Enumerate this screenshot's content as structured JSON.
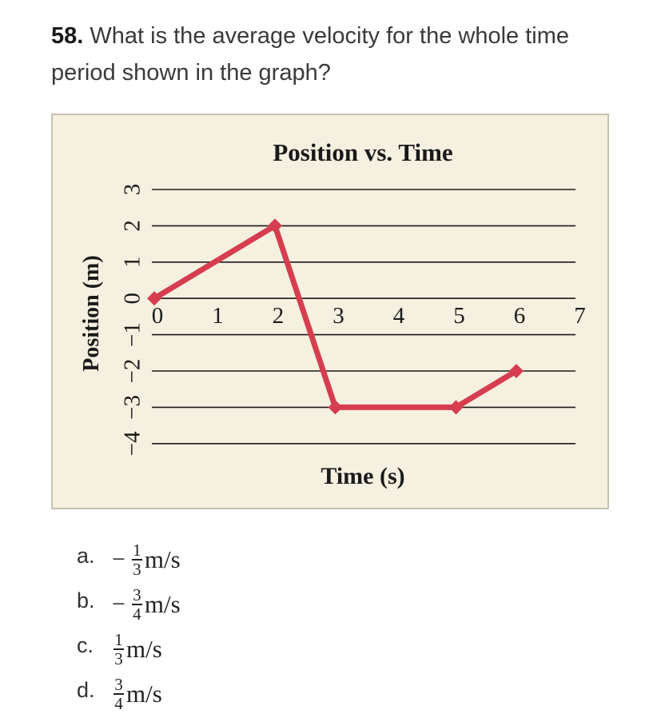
{
  "question": {
    "number": "58.",
    "text": " What is the average velocity for the whole time period shown in the graph?"
  },
  "chart_data": {
    "type": "line",
    "title": "Position vs. Time",
    "xlabel": "Time (s)",
    "ylabel": "Position (m)",
    "xlim": [
      0,
      7
    ],
    "ylim": [
      -4,
      3
    ],
    "x_ticks": [
      "0",
      "1",
      "2",
      "3",
      "4",
      "5",
      "6",
      "7"
    ],
    "y_ticks": [
      "3",
      "2",
      "1",
      "0",
      "−1",
      "−2",
      "−3",
      "−4"
    ],
    "grid": "horizontal",
    "series": [
      {
        "x": [
          0,
          2,
          3,
          5,
          6
        ],
        "y": [
          0,
          2,
          -3,
          -3,
          -2
        ]
      }
    ],
    "colors": {
      "line": "#d63d4e",
      "grid": "#1a1a1a",
      "background": "#f6f0e0"
    }
  },
  "options": [
    {
      "letter": "a.",
      "sign": "−",
      "num": "1",
      "den": "3",
      "unit": "m/s"
    },
    {
      "letter": "b.",
      "sign": "−",
      "num": "3",
      "den": "4",
      "unit": "m/s"
    },
    {
      "letter": "c.",
      "sign": "",
      "num": "1",
      "den": "3",
      "unit": "m/s"
    },
    {
      "letter": "d.",
      "sign": "",
      "num": "3",
      "den": "4",
      "unit": "m/s"
    }
  ]
}
